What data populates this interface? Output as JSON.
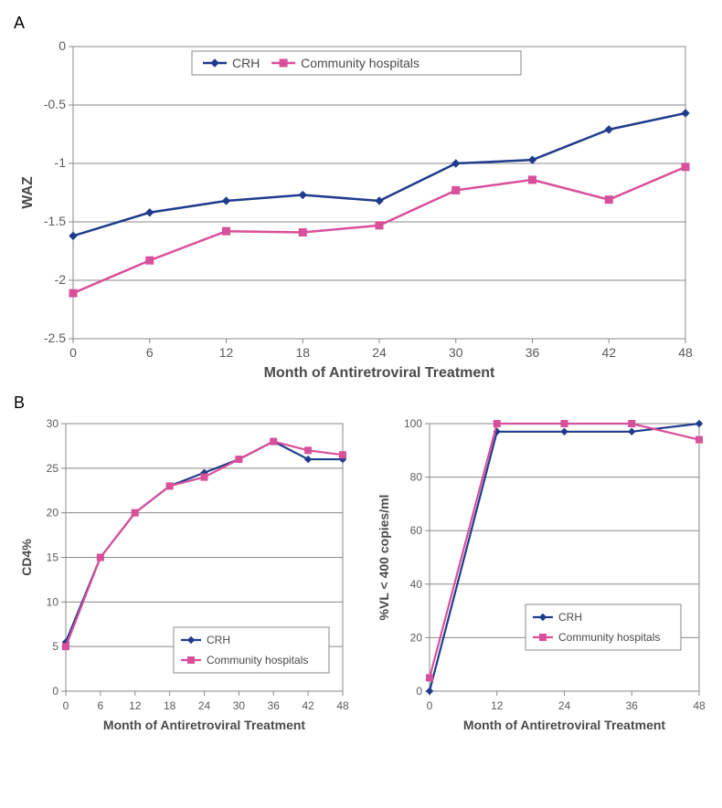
{
  "panelA": {
    "label": "A",
    "type": "line",
    "xlabel": "Month of Antiretroviral Treatment",
    "ylabel": "WAZ",
    "xlim": [
      0,
      48
    ],
    "ylim": [
      -2.5,
      0
    ],
    "xtick_step": 6,
    "ytick_step": 0.5,
    "xticks_labels": [
      "0",
      "6",
      "12",
      "18",
      "24",
      "30",
      "36",
      "42",
      "48"
    ],
    "yticks_labels": [
      "0",
      "-0.5",
      "-1",
      "-1.5",
      "-2",
      "-2.5"
    ],
    "background_color": "#ffffff",
    "grid_color": "#888888",
    "label_fontsize": 16,
    "tick_fontsize": 14,
    "legend_fontsize": 14,
    "series": [
      {
        "name": "CRH",
        "color": "#1f3c8c",
        "marker": "diamond",
        "marker_size": 8,
        "line_width": 2.5,
        "x": [
          0,
          6,
          12,
          18,
          24,
          30,
          36,
          42,
          48
        ],
        "y": [
          -1.62,
          -1.42,
          -1.32,
          -1.27,
          -1.32,
          -1.0,
          -0.97,
          -0.71,
          -0.57
        ]
      },
      {
        "name": "Community hospitals",
        "color": "#d94f9a",
        "marker": "square",
        "marker_size": 8,
        "line_width": 2.5,
        "x": [
          0,
          6,
          12,
          18,
          24,
          30,
          36,
          42,
          48
        ],
        "y": [
          -2.11,
          -1.83,
          -1.58,
          -1.59,
          -1.53,
          -1.23,
          -1.14,
          -1.31,
          -1.03
        ]
      }
    ]
  },
  "panelB_left": {
    "type": "line",
    "xlabel": "Month of Antiretroviral Treatment",
    "ylabel": "CD4%",
    "xlim": [
      0,
      48
    ],
    "ylim": [
      0,
      30
    ],
    "xtick_step": 6,
    "ytick_step": 5,
    "xticks_labels": [
      "0",
      "6",
      "12",
      "18",
      "24",
      "30",
      "36",
      "42",
      "48"
    ],
    "yticks_labels": [
      "0",
      "5",
      "10",
      "15",
      "20",
      "25",
      "30"
    ],
    "background_color": "#ffffff",
    "grid_color": "#888888",
    "label_fontsize": 14,
    "tick_fontsize": 12,
    "legend_fontsize": 12,
    "series": [
      {
        "name": "CRH",
        "color": "#1f3c8c",
        "marker": "diamond",
        "marker_size": 7,
        "line_width": 2.2,
        "x": [
          0,
          6,
          12,
          18,
          24,
          30,
          36,
          42,
          48
        ],
        "y": [
          5.5,
          15,
          20,
          23,
          24.5,
          26,
          28,
          26,
          26
        ]
      },
      {
        "name": "Community hospitals",
        "color": "#d94f9a",
        "marker": "square",
        "marker_size": 7,
        "line_width": 2.2,
        "x": [
          0,
          6,
          12,
          18,
          24,
          30,
          36,
          42,
          48
        ],
        "y": [
          5,
          15,
          20,
          23,
          24,
          26,
          28,
          27,
          26.5
        ]
      }
    ]
  },
  "panelB_right": {
    "type": "line",
    "xlabel": "Month of Antiretroviral Treatment",
    "ylabel": "%VL < 400 copies/ml",
    "xlim": [
      0,
      48
    ],
    "ylim": [
      0,
      100
    ],
    "xtick_step": 12,
    "ytick_step": 20,
    "xticks_labels": [
      "0",
      "12",
      "24",
      "36",
      "48"
    ],
    "yticks_labels": [
      "0",
      "20",
      "40",
      "60",
      "80",
      "100"
    ],
    "background_color": "#ffffff",
    "grid_color": "#888888",
    "label_fontsize": 14,
    "tick_fontsize": 12,
    "legend_fontsize": 12,
    "series": [
      {
        "name": "CRH",
        "color": "#1f3c8c",
        "marker": "diamond",
        "marker_size": 7,
        "line_width": 2.2,
        "x": [
          0,
          12,
          24,
          36,
          48
        ],
        "y": [
          0,
          97,
          97,
          97,
          100
        ]
      },
      {
        "name": "Community hospitals",
        "color": "#d94f9a",
        "marker": "square",
        "marker_size": 7,
        "line_width": 2.2,
        "x": [
          0,
          12,
          24,
          36,
          48
        ],
        "y": [
          5,
          100,
          100,
          100,
          94
        ]
      }
    ]
  },
  "panelB": {
    "label": "B"
  }
}
